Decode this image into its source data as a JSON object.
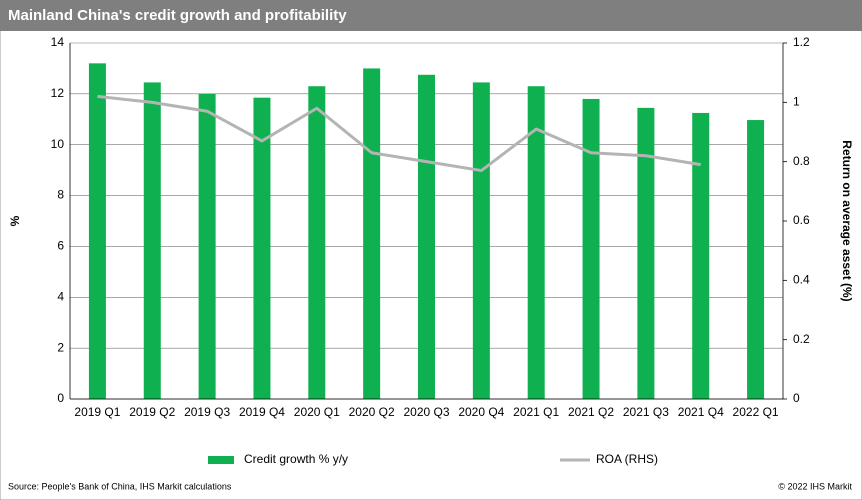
{
  "chart_data": {
    "type": "bar",
    "title": "Mainland China's credit growth and profitability",
    "categories": [
      "2019 Q1",
      "2019 Q2",
      "2019 Q3",
      "2019 Q4",
      "2020 Q1",
      "2020 Q2",
      "2020 Q3",
      "2020 Q4",
      "2021 Q1",
      "2021 Q2",
      "2021 Q3",
      "2021 Q4",
      "2022 Q1"
    ],
    "series": [
      {
        "name": "Credit growth % y/y",
        "type": "bar",
        "color": "#0fb04f",
        "values": [
          13.2,
          12.45,
          12.0,
          11.85,
          12.3,
          13.0,
          12.75,
          12.45,
          12.3,
          11.8,
          11.45,
          11.25,
          10.97
        ]
      },
      {
        "name": "ROA (RHS)",
        "type": "line",
        "axis": "y2",
        "color": "#b4b4b4",
        "values": [
          1.02,
          1.0,
          0.97,
          0.87,
          0.98,
          0.83,
          0.8,
          0.77,
          0.91,
          0.83,
          0.82,
          0.79,
          null
        ]
      }
    ],
    "y_label": "%",
    "y2_label": "Return on average asset (%)",
    "ylim": [
      0,
      14
    ],
    "yticks": [
      0,
      2,
      4,
      6,
      8,
      10,
      12,
      14
    ],
    "y2lim": [
      0,
      1.2
    ],
    "y2ticks": [
      0,
      0.2,
      0.4,
      0.6,
      0.8,
      1,
      1.2
    ],
    "grid": true,
    "legend": "bottom",
    "source": "Source: People's Bank of China, IHS Markit calculations",
    "copyright": "© 2022  IHS Markit"
  }
}
